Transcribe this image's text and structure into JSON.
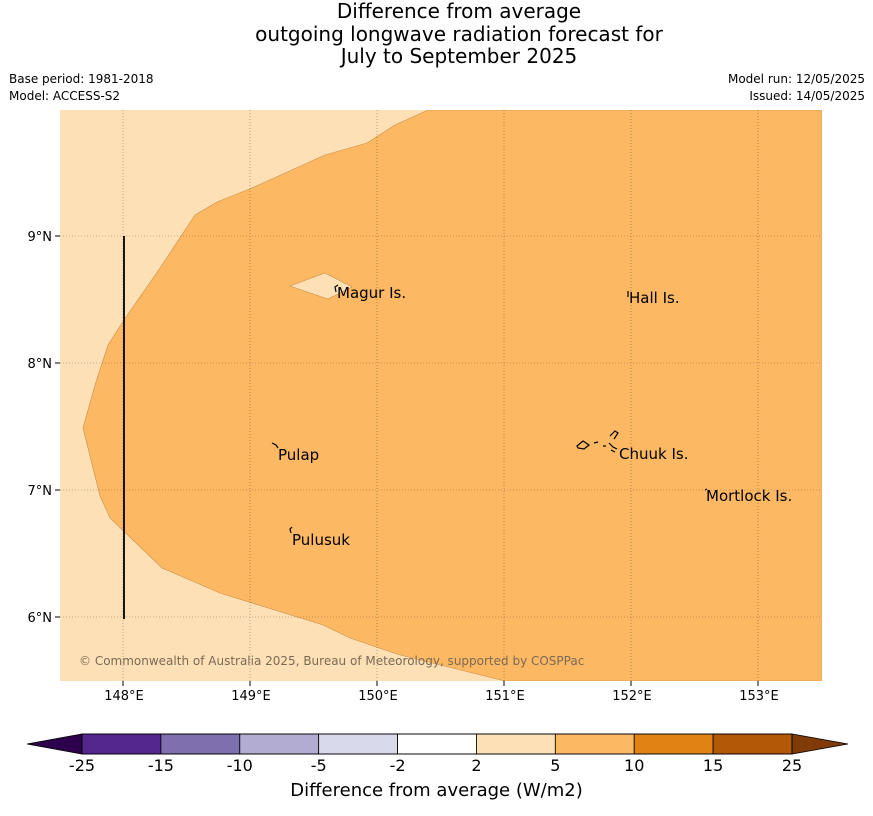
{
  "title": {
    "line1": "Difference from average",
    "line2": "outgoing longwave radiation forecast for",
    "line3": "July to September 2025"
  },
  "meta_left": {
    "base_period": "Base period: 1981-2018",
    "model": "Model: ACCESS-S2"
  },
  "meta_right": {
    "model_run": "Model run: 12/05/2025",
    "issued": "Issued: 14/05/2025"
  },
  "map": {
    "lat_ticks": [
      "6°N",
      "7°N",
      "8°N",
      "9°N"
    ],
    "lon_ticks": [
      "148°E",
      "149°E",
      "150°E",
      "151°E",
      "152°E",
      "153°E"
    ],
    "places": [
      "Magur Is.",
      "Hall Is.",
      "Pulap",
      "Chuuk Is.",
      "Mortlock Is.",
      "Pulusuk"
    ],
    "copyright": "© Commonwealth of Australia 2025, Bureau of Meteorology, supported by COSPPac"
  },
  "colorbar": {
    "ticks": [
      "-25",
      "-15",
      "-10",
      "-5",
      "-2",
      "2",
      "5",
      "10",
      "15",
      "25"
    ],
    "colors": [
      "#54278f",
      "#7f6faf",
      "#b2abd2",
      "#d8daeb",
      "#ffffff",
      "#fee0b6",
      "#fdb863",
      "#e08214",
      "#b35806"
    ],
    "under_color": "#2d004b",
    "over_color": "#7f3b08",
    "label": "Difference from average (W/m2)"
  }
}
